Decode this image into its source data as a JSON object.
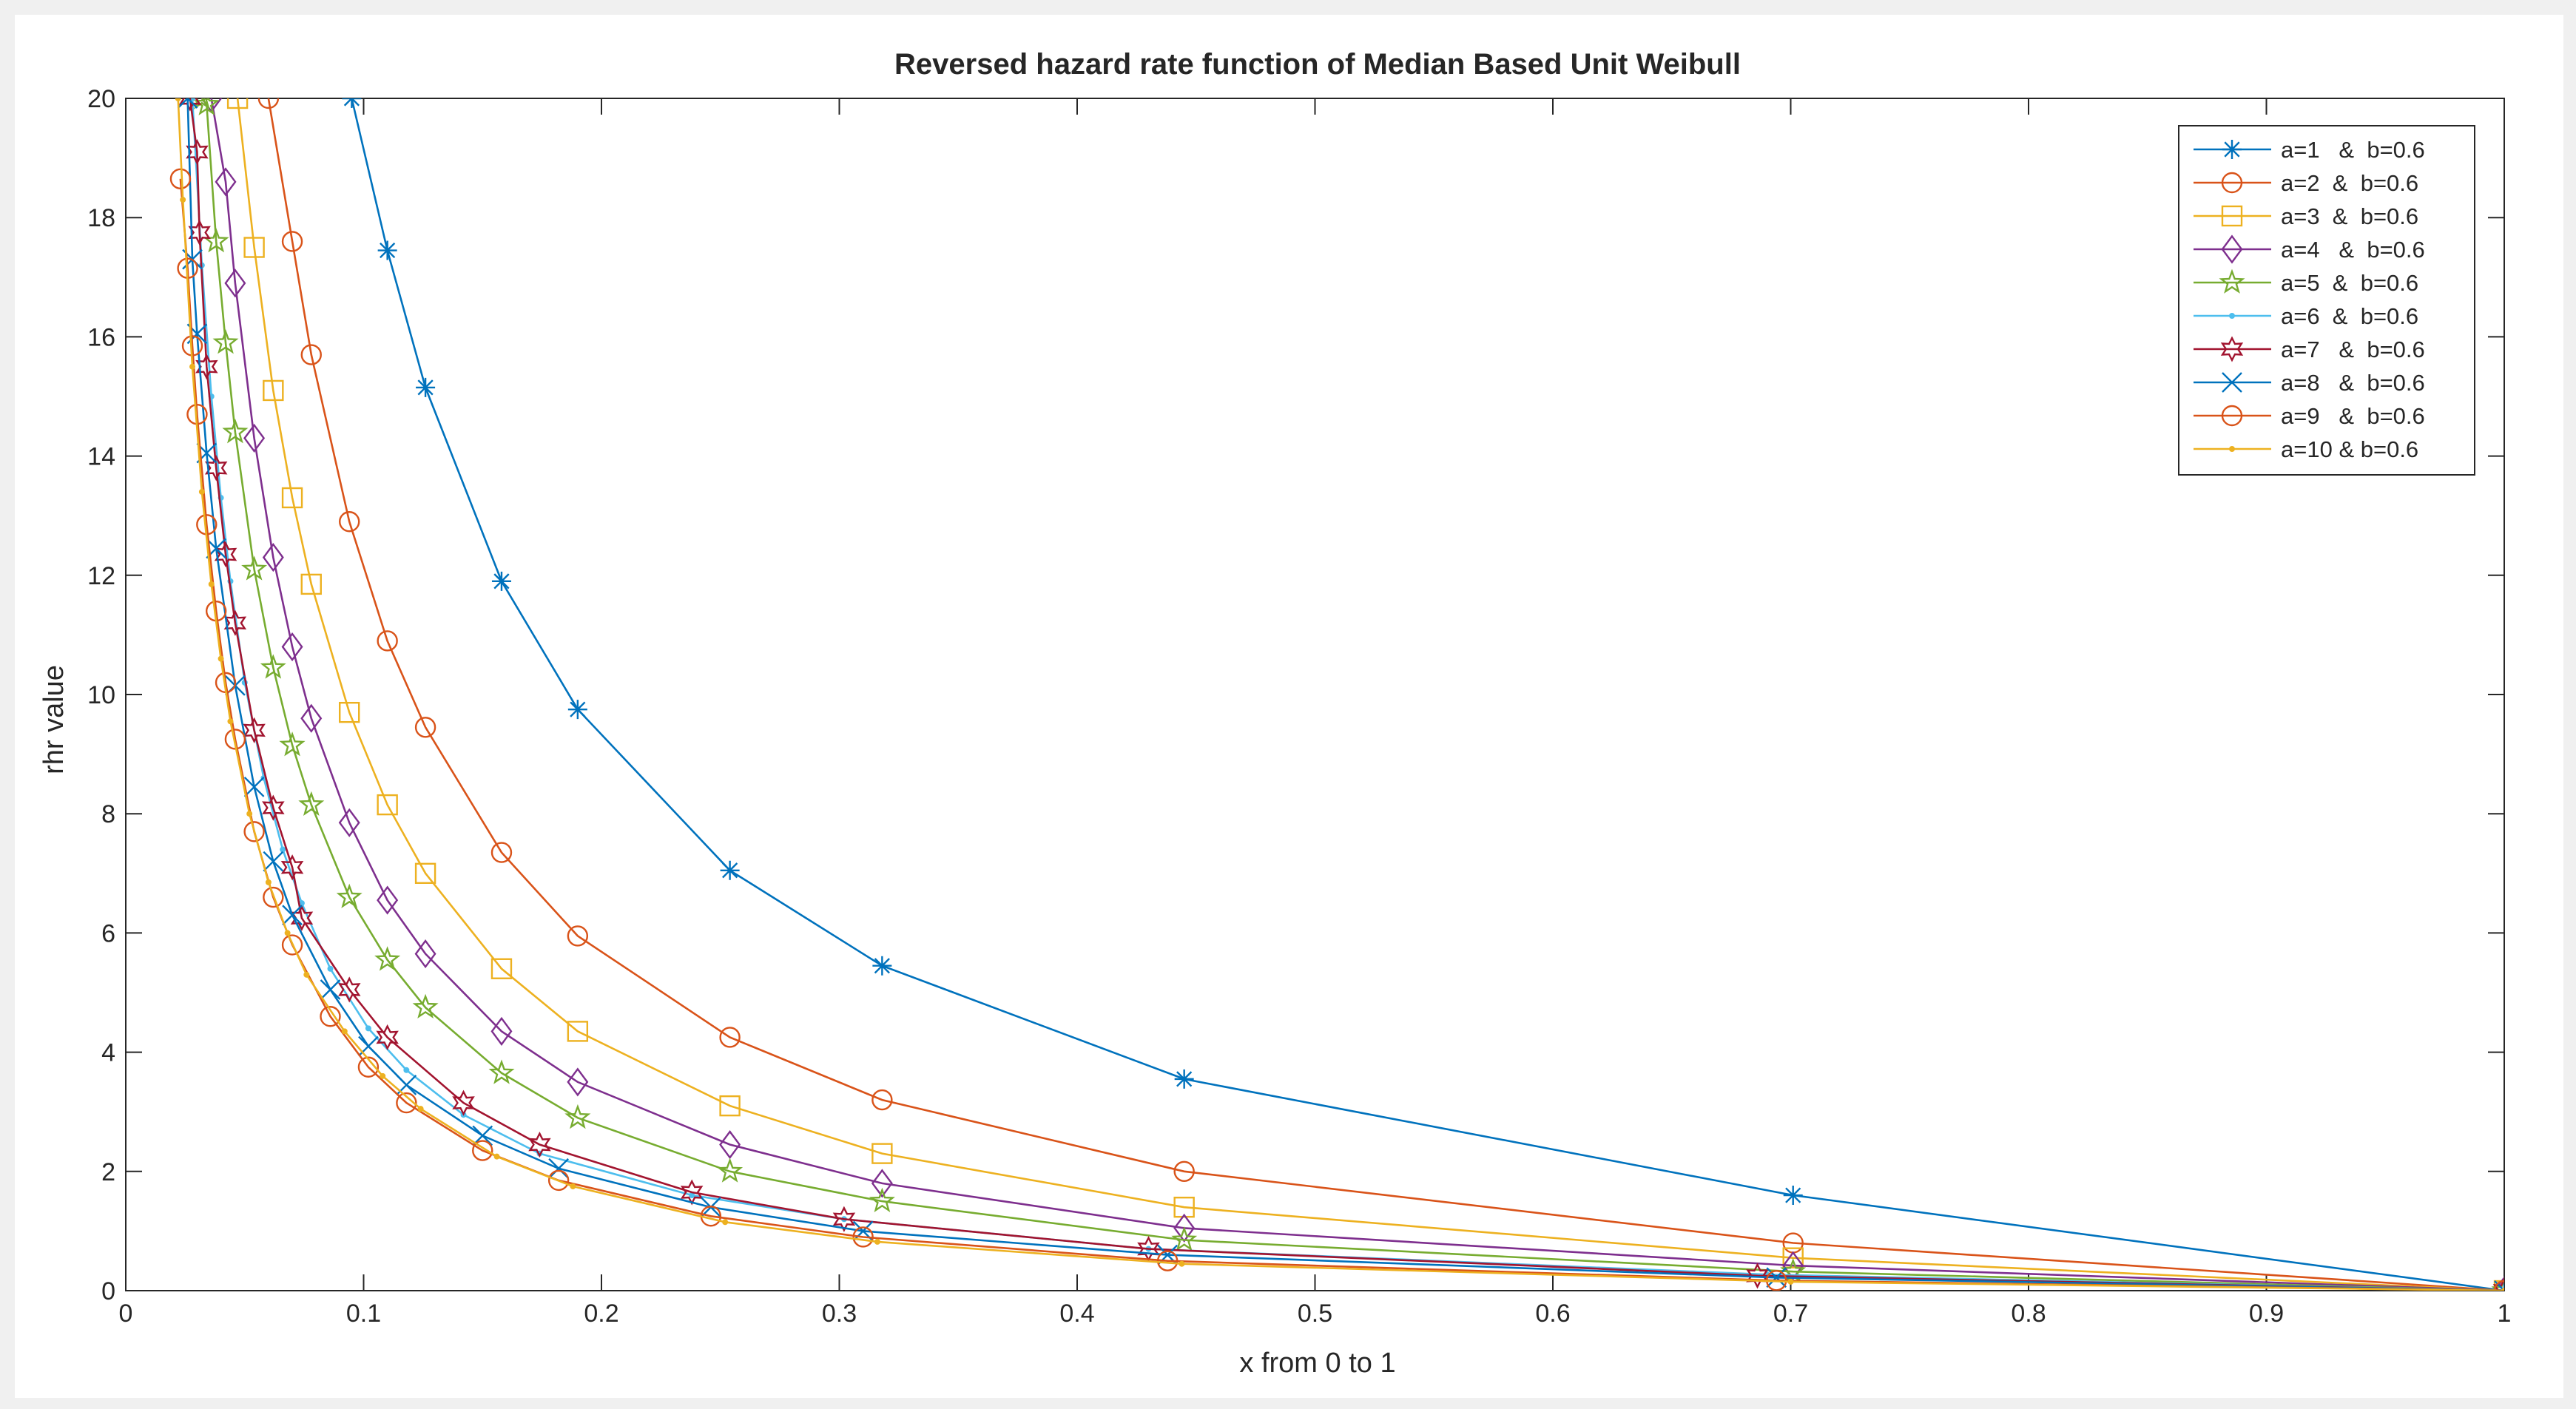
{
  "chart_data": {
    "type": "line",
    "title": "Reversed hazard rate function of Median Based  Unit  Weibull",
    "xlabel": "x from 0 to 1",
    "ylabel": "rhr value",
    "xlim": [
      0,
      1
    ],
    "ylim": [
      0,
      20
    ],
    "xticks": [
      0,
      0.1,
      0.2,
      0.3,
      0.4,
      0.5,
      0.6,
      0.7,
      0.8,
      0.9,
      1
    ],
    "xtick_labels": [
      "0",
      "0.1",
      "0.2",
      "0.3",
      "0.4",
      "0.5",
      "0.6",
      "0.7",
      "0.8",
      "0.9",
      "1"
    ],
    "yticks": [
      0,
      2,
      4,
      6,
      8,
      10,
      12,
      14,
      16,
      18,
      20
    ],
    "ytick_labels": [
      "0",
      "2",
      "4",
      "6",
      "8",
      "10",
      "12",
      "14",
      "16",
      "18",
      "20"
    ],
    "grid": false,
    "legend_position": "top-right",
    "series": [
      {
        "name": "a=1   &  b=0.6",
        "color": "#0072bd",
        "marker": "asterisk",
        "x": [
          0.095,
          0.11,
          0.126,
          0.158,
          0.19,
          0.254,
          0.318,
          0.445,
          0.701,
          1.0
        ],
        "y": [
          20.0,
          17.45,
          15.15,
          11.9,
          9.75,
          7.05,
          5.45,
          3.55,
          1.6,
          0.0
        ]
      },
      {
        "name": "a=2  &  b=0.6",
        "color": "#d95319",
        "marker": "circle",
        "x": [
          0.06,
          0.07,
          0.078,
          0.094,
          0.11,
          0.126,
          0.158,
          0.19,
          0.254,
          0.318,
          0.445,
          0.701,
          1.0
        ],
        "y": [
          20.0,
          17.6,
          15.7,
          12.9,
          10.9,
          9.45,
          7.35,
          5.95,
          4.25,
          3.2,
          2.0,
          0.8,
          0.0
        ]
      },
      {
        "name": "a=3  &  b=0.6",
        "color": "#edb120",
        "marker": "square",
        "x": [
          0.047,
          0.054,
          0.062,
          0.07,
          0.078,
          0.094,
          0.11,
          0.126,
          0.158,
          0.19,
          0.254,
          0.318,
          0.445,
          0.701,
          1.0
        ],
        "y": [
          20.0,
          17.5,
          15.1,
          13.3,
          11.85,
          9.7,
          8.15,
          7.0,
          5.4,
          4.35,
          3.1,
          2.3,
          1.4,
          0.55,
          0.0
        ]
      },
      {
        "name": "a=4   &  b=0.6",
        "color": "#7e2f8e",
        "marker": "diamond",
        "x": [
          0.036,
          0.042,
          0.046,
          0.054,
          0.062,
          0.07,
          0.078,
          0.094,
          0.11,
          0.126,
          0.158,
          0.19,
          0.254,
          0.318,
          0.445,
          0.701,
          1.0
        ],
        "y": [
          20.0,
          18.6,
          16.9,
          14.3,
          12.3,
          10.8,
          9.6,
          7.85,
          6.55,
          5.65,
          4.35,
          3.5,
          2.45,
          1.8,
          1.05,
          0.42,
          0.0
        ]
      },
      {
        "name": "a=5  &  b=0.6",
        "color": "#77ac30",
        "marker": "star",
        "x": [
          0.032,
          0.034,
          0.038,
          0.042,
          0.046,
          0.054,
          0.062,
          0.07,
          0.078,
          0.094,
          0.11,
          0.126,
          0.158,
          0.19,
          0.254,
          0.318,
          0.445,
          0.701,
          1.0
        ],
        "y": [
          20.0,
          19.9,
          17.6,
          15.9,
          14.4,
          12.1,
          10.45,
          9.15,
          8.15,
          6.6,
          5.55,
          4.75,
          3.65,
          2.9,
          2.0,
          1.5,
          0.85,
          0.32,
          0.0
        ]
      },
      {
        "name": "a=6  &  b=0.6",
        "color": "#4dbeee",
        "marker": "dot",
        "x": [
          0.028,
          0.032,
          0.036,
          0.04,
          0.044,
          0.05,
          0.058,
          0.066,
          0.074,
          0.086,
          0.102,
          0.118,
          0.142,
          0.174,
          0.238,
          0.302,
          0.43,
          0.69,
          1.0
        ],
        "y": [
          20.0,
          17.2,
          15.0,
          13.3,
          11.9,
          10.2,
          8.6,
          7.4,
          6.5,
          5.4,
          4.4,
          3.7,
          2.95,
          2.3,
          1.6,
          1.2,
          0.7,
          0.27,
          0.0
        ]
      },
      {
        "name": "a=7   &  b=0.6",
        "color": "#a2142f",
        "marker": "hexagram",
        "x": [
          0.027,
          0.03,
          0.031,
          0.034,
          0.038,
          0.042,
          0.046,
          0.054,
          0.062,
          0.07,
          0.074,
          0.094,
          0.11,
          0.142,
          0.174,
          0.238,
          0.302,
          0.43,
          0.686,
          1.0
        ],
        "y": [
          20.0,
          19.1,
          17.75,
          15.5,
          13.8,
          12.35,
          11.2,
          9.4,
          8.1,
          7.1,
          6.25,
          5.05,
          4.25,
          3.15,
          2.45,
          1.65,
          1.2,
          0.7,
          0.25,
          0.0
        ]
      },
      {
        "name": "a=8   &  b=0.6",
        "color": "#0072bd",
        "marker": "x",
        "x": [
          0.026,
          0.028,
          0.03,
          0.034,
          0.038,
          0.046,
          0.054,
          0.062,
          0.07,
          0.086,
          0.102,
          0.118,
          0.15,
          0.182,
          0.246,
          0.31,
          0.438,
          0.694,
          1.0
        ],
        "y": [
          20.0,
          17.3,
          16.05,
          14.05,
          12.45,
          10.15,
          8.45,
          7.2,
          6.3,
          5.05,
          4.1,
          3.45,
          2.6,
          2.05,
          1.4,
          1.0,
          0.6,
          0.22,
          0.0
        ]
      },
      {
        "name": "a=9   &  b=0.6",
        "color": "#d95319",
        "marker": "circle",
        "x": [
          0.023,
          0.026,
          0.028,
          0.03,
          0.034,
          0.038,
          0.042,
          0.046,
          0.054,
          0.062,
          0.07,
          0.086,
          0.102,
          0.118,
          0.15,
          0.182,
          0.246,
          0.31,
          0.438,
          0.694,
          1.0
        ],
        "y": [
          18.65,
          17.15,
          15.85,
          14.7,
          12.85,
          11.4,
          10.2,
          9.25,
          7.7,
          6.6,
          5.8,
          4.6,
          3.75,
          3.15,
          2.35,
          1.85,
          1.25,
          0.9,
          0.5,
          0.17,
          0.0
        ]
      },
      {
        "name": "a=10 & b=0.6",
        "color": "#edb120",
        "marker": "dot",
        "x": [
          0.022,
          0.024,
          0.028,
          0.032,
          0.036,
          0.04,
          0.044,
          0.052,
          0.06,
          0.068,
          0.076,
          0.092,
          0.108,
          0.124,
          0.156,
          0.188,
          0.252,
          0.316,
          0.444,
          0.7,
          1.0
        ],
        "y": [
          20.0,
          18.3,
          15.5,
          13.4,
          11.85,
          10.6,
          9.55,
          8.0,
          6.85,
          6.0,
          5.3,
          4.35,
          3.6,
          3.05,
          2.25,
          1.75,
          1.15,
          0.82,
          0.45,
          0.15,
          0.0
        ]
      }
    ]
  }
}
